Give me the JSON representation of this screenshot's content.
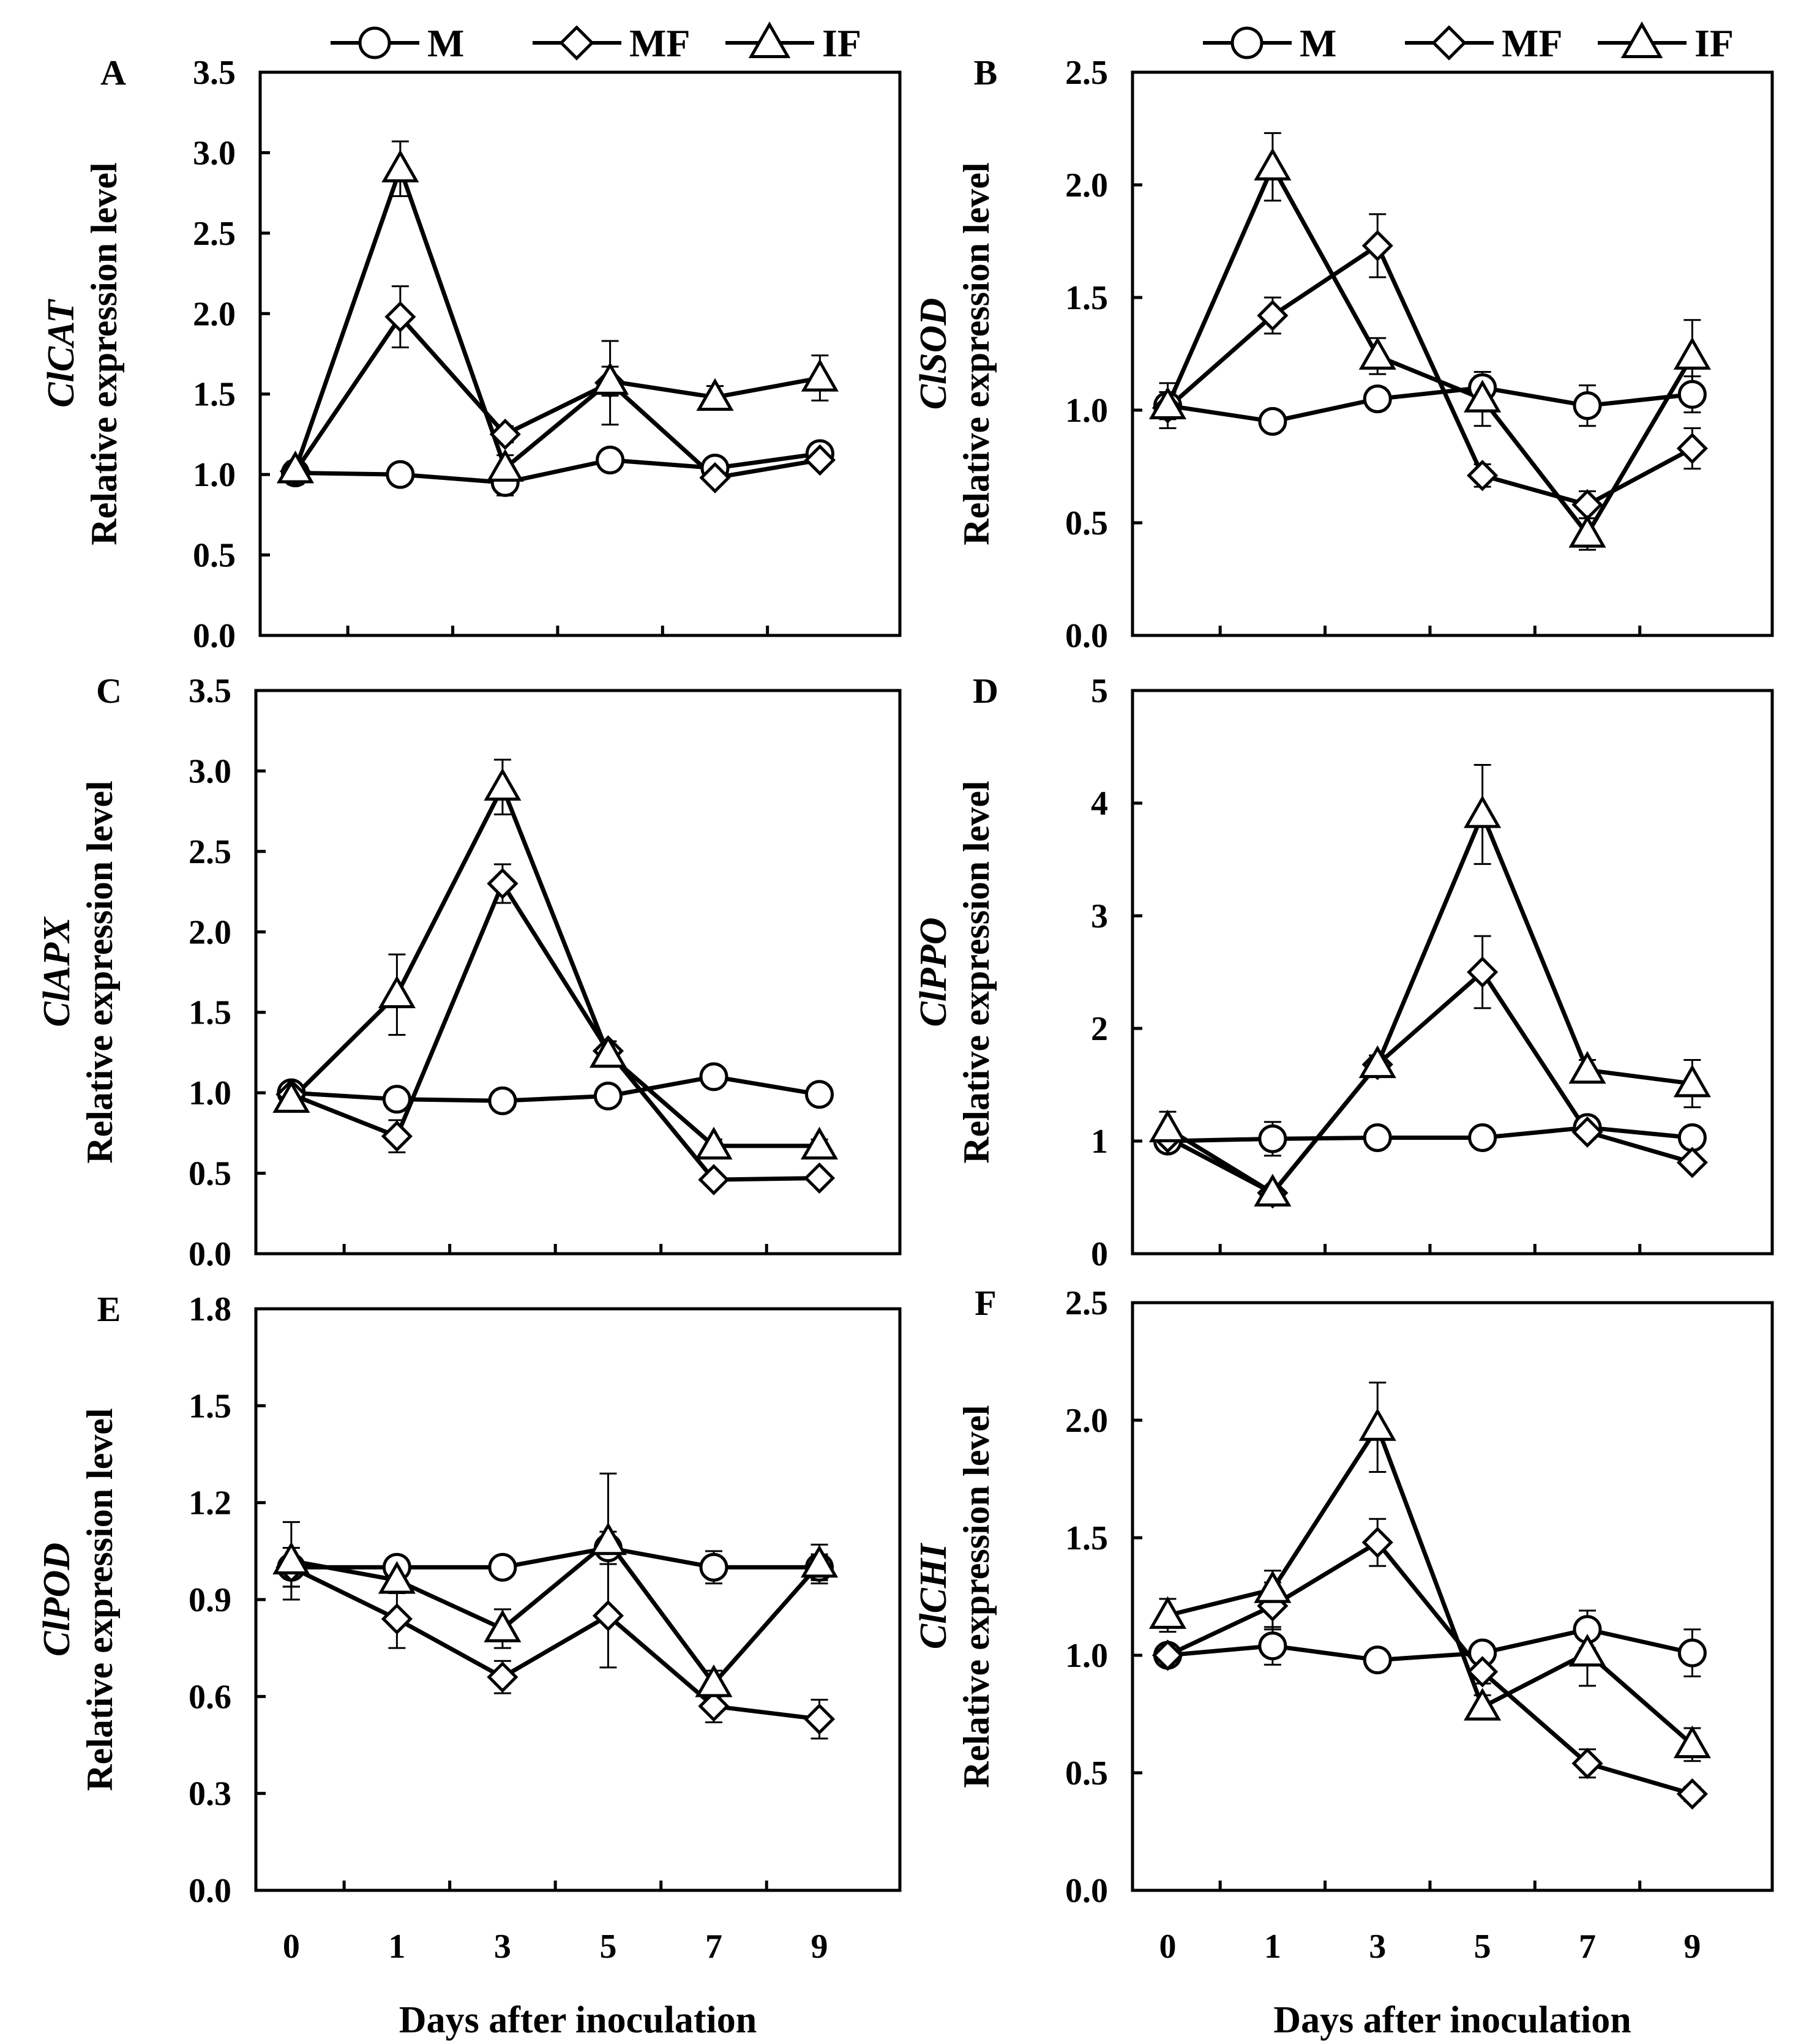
{
  "chart_data": {
    "type": "line",
    "x": [
      0,
      1,
      3,
      5,
      7,
      9
    ],
    "x_tick_labels": [
      "0",
      "1",
      "3",
      "5",
      "7",
      "9"
    ],
    "xlabel": "Days after inoculation",
    "legend": [
      "M",
      "MF",
      "IF"
    ],
    "legend_placement": "top",
    "panels": [
      {
        "label": "A",
        "gene": "ClCAT",
        "ylabel": "Relative expression level",
        "ylim": [
          0,
          3.5
        ],
        "y_ticks": [
          "0.0",
          "0.5",
          "1.0",
          "1.5",
          "2.0",
          "2.5",
          "3.0",
          "3.5"
        ],
        "series": [
          {
            "name": "M",
            "marker": "circle",
            "values": [
              1.01,
              1.0,
              0.95,
              1.09,
              1.04,
              1.13
            ],
            "errors": [
              0.07,
              0.02,
              0.08,
              0.03,
              0.06,
              0.03
            ]
          },
          {
            "name": "MF",
            "marker": "diamond",
            "values": [
              1.02,
              1.98,
              1.25,
              1.57,
              0.98,
              1.09
            ],
            "errors": [
              0.05,
              0.19,
              0.05,
              0.26,
              0.04,
              0.03
            ]
          },
          {
            "name": "IF",
            "marker": "triangle",
            "values": [
              1.03,
              2.9,
              1.04,
              1.58,
              1.48,
              1.6
            ],
            "errors": [
              0.05,
              0.17,
              0.08,
              0.09,
              0.07,
              0.14
            ]
          }
        ]
      },
      {
        "label": "B",
        "gene": "ClSOD",
        "ylabel": "Relative expression level",
        "ylim": [
          0,
          2.5
        ],
        "y_ticks": [
          "0.0",
          "0.5",
          "1.0",
          "1.5",
          "2.0",
          "2.5"
        ],
        "series": [
          {
            "name": "M",
            "marker": "circle",
            "values": [
              1.02,
              0.95,
              1.05,
              1.1,
              1.02,
              1.07
            ],
            "errors": [
              0.1,
              0.02,
              0.05,
              0.05,
              0.09,
              0.08
            ]
          },
          {
            "name": "MF",
            "marker": "diamond",
            "values": [
              1.01,
              1.42,
              1.73,
              0.71,
              0.58,
              0.83
            ],
            "errors": [
              0.05,
              0.08,
              0.14,
              0.05,
              0.06,
              0.09
            ]
          },
          {
            "name": "IF",
            "marker": "triangle",
            "values": [
              1.02,
              2.08,
              1.24,
              1.05,
              0.45,
              1.24
            ],
            "errors": [
              0.06,
              0.15,
              0.08,
              0.12,
              0.07,
              0.16
            ]
          }
        ]
      },
      {
        "label": "C",
        "gene": "ClAPX",
        "ylabel": "Relative expression level",
        "ylim": [
          0,
          3.5
        ],
        "y_ticks": [
          "0.0",
          "0.5",
          "1.0",
          "1.5",
          "2.0",
          "2.5",
          "3.0",
          "3.5"
        ],
        "series": [
          {
            "name": "M",
            "marker": "circle",
            "values": [
              1.0,
              0.96,
              0.95,
              0.98,
              1.1,
              0.99
            ],
            "errors": [
              0.03,
              0.03,
              0.02,
              0.05,
              0.03,
              0.05
            ]
          },
          {
            "name": "MF",
            "marker": "diamond",
            "values": [
              0.99,
              0.73,
              2.3,
              1.26,
              0.46,
              0.47
            ],
            "errors": [
              0.04,
              0.1,
              0.12,
              0.06,
              0.03,
              0.03
            ]
          },
          {
            "name": "IF",
            "marker": "triangle",
            "values": [
              0.96,
              1.61,
              2.9,
              1.24,
              0.67,
              0.67
            ],
            "errors": [
              0.04,
              0.25,
              0.17,
              0.06,
              0.04,
              0.04
            ]
          }
        ]
      },
      {
        "label": "D",
        "gene": "ClPPO",
        "ylabel": "Relative expression level",
        "ylim": [
          0,
          5
        ],
        "y_ticks": [
          "0",
          "1",
          "2",
          "3",
          "4",
          "5"
        ],
        "series": [
          {
            "name": "M",
            "marker": "circle",
            "values": [
              1.0,
              1.02,
              1.03,
              1.03,
              1.12,
              1.03
            ],
            "errors": [
              0.05,
              0.15,
              0.04,
              0.03,
              0.1,
              0.05
            ]
          },
          {
            "name": "MF",
            "marker": "diamond",
            "values": [
              1.03,
              0.54,
              1.68,
              2.5,
              1.08,
              0.81
            ],
            "errors": [
              0.08,
              0.05,
              0.08,
              0.32,
              0.05,
              0.05
            ]
          },
          {
            "name": "IF",
            "marker": "triangle",
            "values": [
              1.11,
              0.54,
              1.68,
              3.9,
              1.63,
              1.51
            ],
            "errors": [
              0.15,
              0.06,
              0.08,
              0.44,
              0.09,
              0.21
            ]
          }
        ]
      },
      {
        "label": "E",
        "gene": "ClPOD",
        "ylabel": "Relative expression level",
        "ylim": [
          0,
          1.8
        ],
        "y_ticks": [
          "0.0",
          "0.3",
          "0.6",
          "0.9",
          "1.2",
          "1.5",
          "1.8"
        ],
        "series": [
          {
            "name": "M",
            "marker": "circle",
            "values": [
              1.0,
              1.0,
              1.0,
              1.06,
              1.0,
              1.0
            ],
            "errors": [
              0.06,
              0.02,
              0.02,
              0.05,
              0.05,
              0.04
            ]
          },
          {
            "name": "MF",
            "marker": "diamond",
            "values": [
              1.0,
              0.84,
              0.66,
              0.85,
              0.57,
              0.53
            ],
            "errors": [
              0.06,
              0.09,
              0.05,
              0.16,
              0.05,
              0.06
            ]
          },
          {
            "name": "IF",
            "marker": "triangle",
            "values": [
              1.02,
              0.96,
              0.81,
              1.08,
              0.64,
              1.01
            ],
            "errors": [
              0.12,
              0.04,
              0.06,
              0.21,
              0.04,
              0.06
            ]
          }
        ]
      },
      {
        "label": "F",
        "gene": "ClCHI",
        "ylabel": "Relative expression level",
        "ylim": [
          0,
          2.5
        ],
        "y_ticks": [
          "0.0",
          "0.5",
          "1.0",
          "1.5",
          "2.0",
          "2.5"
        ],
        "series": [
          {
            "name": "M",
            "marker": "circle",
            "values": [
              1.0,
              1.04,
              0.98,
              1.01,
              1.11,
              1.01
            ],
            "errors": [
              0.03,
              0.08,
              0.02,
              0.04,
              0.08,
              0.1
            ]
          },
          {
            "name": "MF",
            "marker": "diamond",
            "values": [
              1.0,
              1.21,
              1.48,
              0.93,
              0.54,
              0.41
            ],
            "errors": [
              0.03,
              0.1,
              0.1,
              0.05,
              0.06,
              0.03
            ]
          },
          {
            "name": "IF",
            "marker": "triangle",
            "values": [
              1.17,
              1.28,
              1.97,
              0.78,
              1.01,
              0.62
            ],
            "errors": [
              0.07,
              0.08,
              0.19,
              0.05,
              0.14,
              0.07
            ]
          }
        ]
      }
    ]
  }
}
